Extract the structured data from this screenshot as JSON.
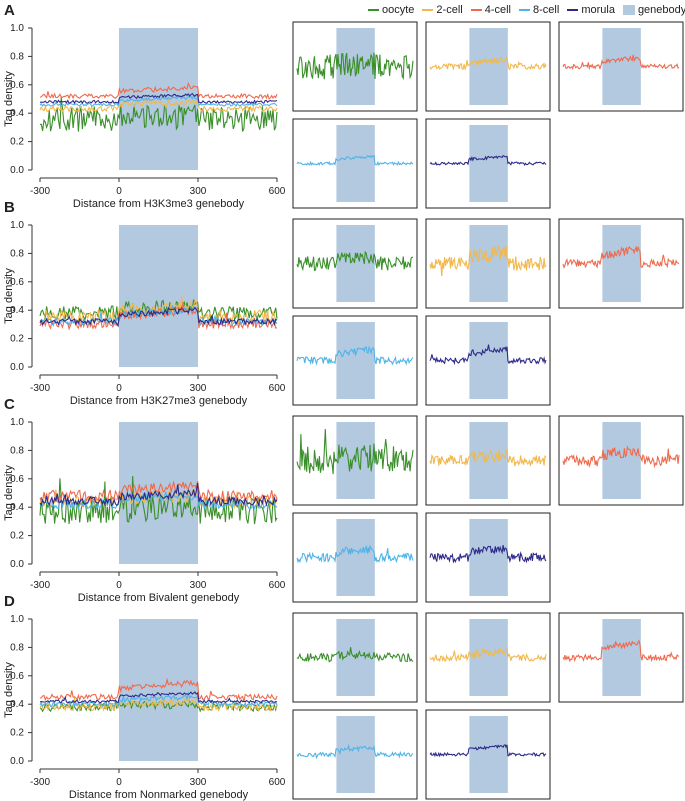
{
  "legend": [
    {
      "label": "oocyte",
      "color": "#3a8f2a"
    },
    {
      "label": "2-cell",
      "color": "#f2b84b"
    },
    {
      "label": "4-cell",
      "color": "#ef6a4d"
    },
    {
      "label": "8-cell",
      "color": "#4fb3e8"
    },
    {
      "label": "morula",
      "color": "#2e2a8a"
    },
    {
      "label": "genebody",
      "color": "#b3c9df"
    }
  ],
  "chart_data": [
    {
      "panel": "A",
      "type": "line",
      "xlabel": "Distance from H3K3me3 genebody",
      "ylabel": "Tag density",
      "ylim": [
        0,
        1
      ],
      "xlim": [
        -300,
        600
      ],
      "x_ticks": [
        -300,
        0,
        300,
        600
      ],
      "y_ticks": [
        0,
        0.2,
        0.4,
        0.6,
        0.8,
        1
      ],
      "y_tick_labels": [
        "0.0",
        "0.2",
        "0.4",
        "0.6",
        "0.8",
        "1.0"
      ],
      "genebody_range": [
        0,
        300
      ],
      "series": [
        {
          "name": "oocyte",
          "baseline": 0.36,
          "gene_delta": 0.02,
          "noise": 0.09
        },
        {
          "name": "2-cell",
          "baseline": 0.43,
          "gene_delta": 0.05,
          "noise": 0.02
        },
        {
          "name": "4-cell",
          "baseline": 0.52,
          "gene_delta": 0.06,
          "noise": 0.015
        },
        {
          "name": "8-cell",
          "baseline": 0.46,
          "gene_delta": 0.05,
          "noise": 0.01
        },
        {
          "name": "morula",
          "baseline": 0.48,
          "gene_delta": 0.05,
          "noise": 0.01
        }
      ]
    },
    {
      "panel": "B",
      "type": "line",
      "xlabel": "Distance from H3K27me3 genebody",
      "ylabel": "Tag density",
      "ylim": [
        0,
        1
      ],
      "xlim": [
        -300,
        600
      ],
      "x_ticks": [
        -300,
        0,
        300,
        600
      ],
      "y_ticks": [
        0,
        0.2,
        0.4,
        0.6,
        0.8,
        1
      ],
      "y_tick_labels": [
        "0.0",
        "0.2",
        "0.4",
        "0.6",
        "0.8",
        "1.0"
      ],
      "genebody_range": [
        0,
        300
      ],
      "series": [
        {
          "name": "oocyte",
          "baseline": 0.38,
          "gene_delta": 0.05,
          "noise": 0.05
        },
        {
          "name": "2-cell",
          "baseline": 0.35,
          "gene_delta": 0.08,
          "noise": 0.05
        },
        {
          "name": "4-cell",
          "baseline": 0.3,
          "gene_delta": 0.1,
          "noise": 0.03
        },
        {
          "name": "8-cell",
          "baseline": 0.32,
          "gene_delta": 0.08,
          "noise": 0.025
        },
        {
          "name": "morula",
          "baseline": 0.32,
          "gene_delta": 0.08,
          "noise": 0.02
        }
      ]
    },
    {
      "panel": "C",
      "type": "line",
      "xlabel": "Distance from Bivalent genebody",
      "ylabel": "Tag density",
      "ylim": [
        0,
        1
      ],
      "xlim": [
        -300,
        600
      ],
      "x_ticks": [
        -300,
        0,
        300,
        600
      ],
      "y_ticks": [
        0,
        0.2,
        0.4,
        0.6,
        0.8,
        1
      ],
      "y_tick_labels": [
        "0.0",
        "0.2",
        "0.4",
        "0.6",
        "0.8",
        "1.0"
      ],
      "genebody_range": [
        0,
        300
      ],
      "series": [
        {
          "name": "oocyte",
          "baseline": 0.38,
          "gene_delta": 0.02,
          "noise": 0.1
        },
        {
          "name": "2-cell",
          "baseline": 0.44,
          "gene_delta": 0.04,
          "noise": 0.04
        },
        {
          "name": "4-cell",
          "baseline": 0.48,
          "gene_delta": 0.07,
          "noise": 0.04
        },
        {
          "name": "8-cell",
          "baseline": 0.42,
          "gene_delta": 0.06,
          "noise": 0.03
        },
        {
          "name": "morula",
          "baseline": 0.44,
          "gene_delta": 0.06,
          "noise": 0.03
        }
      ]
    },
    {
      "panel": "D",
      "type": "line",
      "xlabel": "Distance from Nonmarked genebody",
      "ylabel": "Tag density",
      "ylim": [
        0,
        1
      ],
      "xlim": [
        -300,
        600
      ],
      "x_ticks": [
        -300,
        0,
        300,
        600
      ],
      "y_ticks": [
        0,
        0.2,
        0.4,
        0.6,
        0.8,
        1
      ],
      "y_tick_labels": [
        "0.0",
        "0.2",
        "0.4",
        "0.6",
        "0.8",
        "1.0"
      ],
      "genebody_range": [
        0,
        300
      ],
      "series": [
        {
          "name": "oocyte",
          "baseline": 0.38,
          "gene_delta": 0.02,
          "noise": 0.03
        },
        {
          "name": "2-cell",
          "baseline": 0.38,
          "gene_delta": 0.04,
          "noise": 0.025
        },
        {
          "name": "4-cell",
          "baseline": 0.45,
          "gene_delta": 0.1,
          "noise": 0.02
        },
        {
          "name": "8-cell",
          "baseline": 0.4,
          "gene_delta": 0.05,
          "noise": 0.015
        },
        {
          "name": "morula",
          "baseline": 0.42,
          "gene_delta": 0.06,
          "noise": 0.01
        }
      ]
    }
  ]
}
